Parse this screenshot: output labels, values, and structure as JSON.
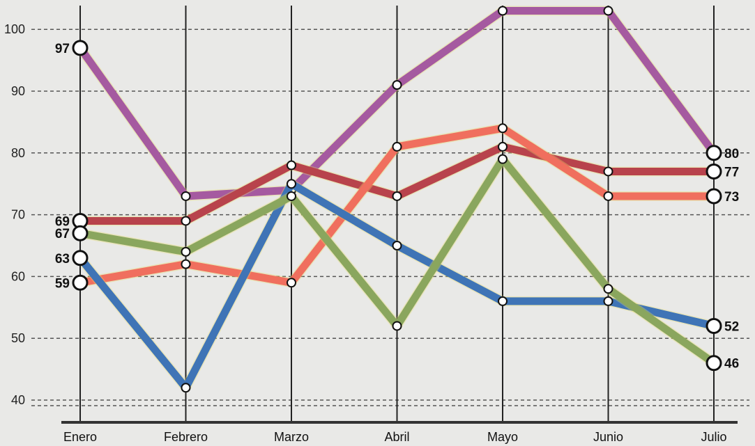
{
  "chart_data": {
    "type": "line",
    "title": "",
    "xlabel": "",
    "ylabel": "",
    "categories": [
      "Enero",
      "Febrero",
      "Marzo",
      "Abril",
      "Mayo",
      "Junio",
      "Julio"
    ],
    "yticks": [
      "40",
      "50",
      "60",
      "70",
      "80",
      "90",
      "100"
    ],
    "ylim": [
      40,
      100
    ],
    "grid": "horizontal dashed",
    "legend": "none",
    "series": [
      {
        "color": "#a55aa0",
        "values": [
          97,
          73,
          74,
          91,
          103,
          103,
          80
        ],
        "start_label": "97",
        "end_label": "80"
      },
      {
        "color": "#b8434c",
        "values": [
          69,
          69,
          78,
          73,
          81,
          77,
          77
        ],
        "start_label": "69",
        "end_label": "77"
      },
      {
        "color": "#f06f5e",
        "values": [
          59,
          62,
          59,
          81,
          84,
          73,
          73
        ],
        "start_label": "59",
        "end_label": "73"
      },
      {
        "color": "#3f74b6",
        "values": [
          63,
          42,
          75,
          65,
          56,
          56,
          52
        ],
        "start_label": "63",
        "end_label": "52"
      },
      {
        "color": "#8aa65e",
        "values": [
          67,
          64,
          73,
          52,
          79,
          58,
          46
        ],
        "start_label": "67",
        "end_label": "46"
      }
    ]
  }
}
